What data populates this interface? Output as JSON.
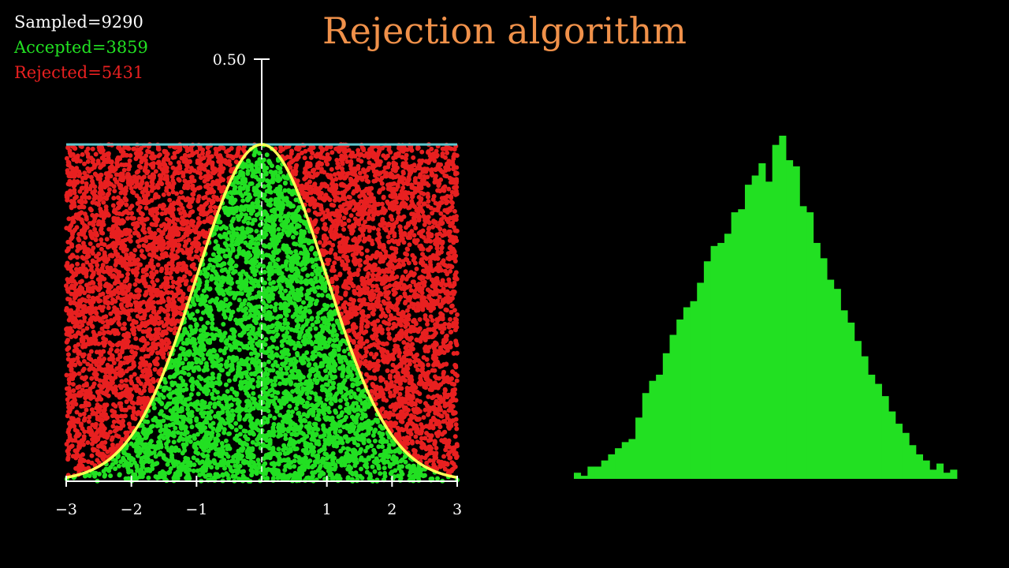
{
  "title": "Rejection algorithm",
  "stats": {
    "sampled": "Sampled=9290",
    "accepted": "Accepted=3859",
    "rejected": "Rejected=5431"
  },
  "colors": {
    "title": "#f0914a",
    "sampled": "#ffffff",
    "accepted": "#22e022",
    "rejected": "#e82020",
    "curve": "#ffff55",
    "envelope": "#5ec9d0",
    "background": "#000000"
  },
  "chart_data": [
    {
      "type": "scatter",
      "title": "",
      "xlim": [
        -3,
        3
      ],
      "ylim": [
        0,
        0.5
      ],
      "envelope_y": 0.3989,
      "density": "standard normal",
      "x_ticks": [
        {
          "value": -3,
          "label": "−3"
        },
        {
          "value": -2,
          "label": "−2"
        },
        {
          "value": -1,
          "label": "−1"
        },
        {
          "value": 1,
          "label": "1"
        },
        {
          "value": 2,
          "label": "2"
        },
        {
          "value": 3,
          "label": "3"
        }
      ],
      "y_ticks": [
        {
          "value": 0.5,
          "label": "0.50"
        }
      ],
      "series": [
        {
          "name": "Accepted",
          "count": 3859,
          "color": "#22e022"
        },
        {
          "name": "Rejected",
          "count": 5431,
          "color": "#e82020"
        }
      ]
    },
    {
      "type": "bar",
      "title": "",
      "xlim": [
        -3,
        3
      ],
      "bin_width": 0.1,
      "counts": [
        2,
        1,
        4,
        4,
        6,
        8,
        10,
        12,
        13,
        20,
        28,
        32,
        34,
        41,
        47,
        52,
        56,
        58,
        64,
        71,
        76,
        77,
        80,
        87,
        88,
        96,
        99,
        103,
        97,
        109,
        112,
        104,
        102,
        89,
        87,
        77,
        72,
        65,
        62,
        55,
        51,
        45,
        40,
        34,
        31,
        27,
        22,
        18,
        15,
        11,
        8,
        6,
        3,
        5,
        2,
        3
      ]
    }
  ]
}
